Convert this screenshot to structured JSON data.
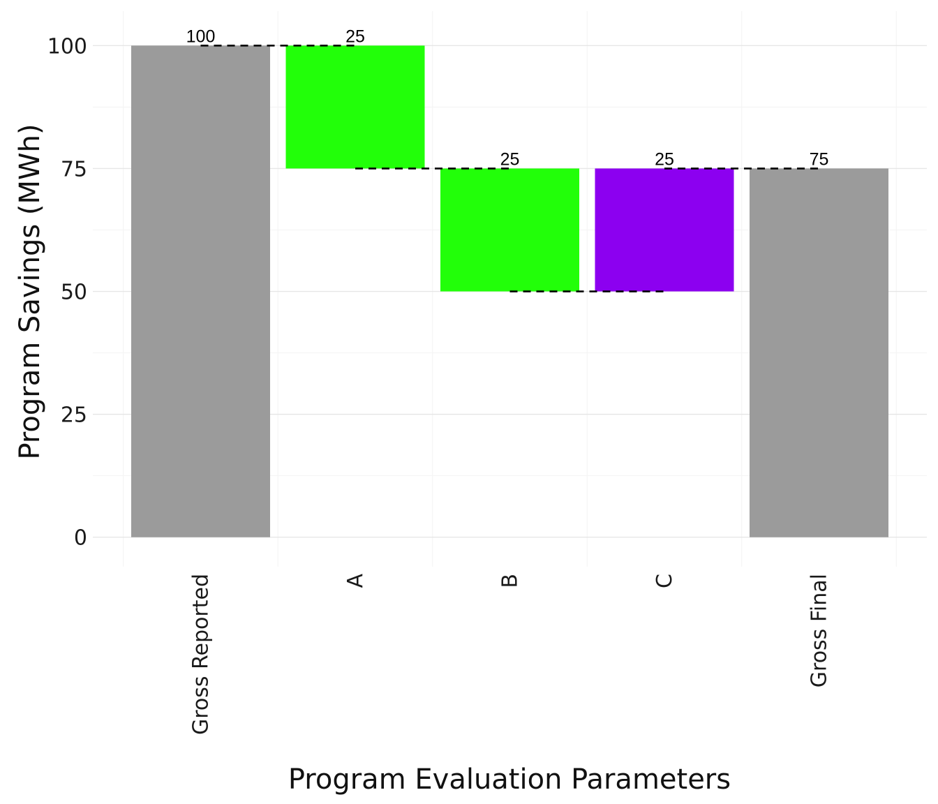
{
  "chart_data": {
    "type": "bar",
    "subtype": "waterfall",
    "title": "",
    "xlabel": "Program Evaluation Parameters",
    "ylabel": "Program Savings (MWh)",
    "ylim": [
      -6,
      107
    ],
    "yticks": [
      0,
      25,
      50,
      75,
      100
    ],
    "grid": true,
    "legend": "none",
    "categories": [
      "Gross Reported",
      "A",
      "B",
      "C",
      "Gross Final"
    ],
    "bars": [
      {
        "category": "Gross Reported",
        "start": 0,
        "end": 100,
        "label": "100",
        "color": "#9b9b9b"
      },
      {
        "category": "A",
        "start": 100,
        "end": 75,
        "label": "25",
        "color": "#22ff09"
      },
      {
        "category": "B",
        "start": 75,
        "end": 50,
        "label": "25",
        "color": "#22ff09"
      },
      {
        "category": "C",
        "start": 50,
        "end": 75,
        "label": "25",
        "color": "#8c00f0"
      },
      {
        "category": "Gross Final",
        "start": 0,
        "end": 75,
        "label": "75",
        "color": "#9b9b9b"
      }
    ],
    "connectors": [
      {
        "from": 0,
        "to": 1,
        "value": 100
      },
      {
        "from": 1,
        "to": 2,
        "value": 75
      },
      {
        "from": 2,
        "to": 3,
        "value": 50
      },
      {
        "from": 3,
        "to": 4,
        "value": 75
      }
    ]
  }
}
